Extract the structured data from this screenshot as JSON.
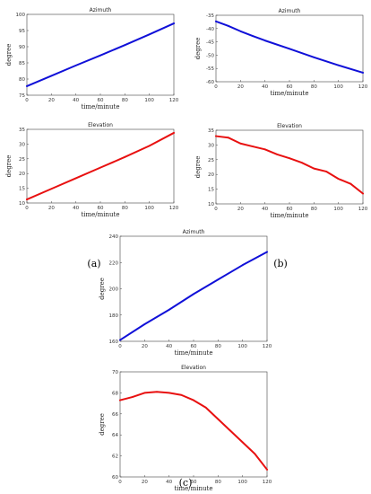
{
  "figure": {
    "sublabels": [
      "(a)",
      "(b)",
      "(c)"
    ]
  },
  "chart_data": [
    {
      "type": "line",
      "panel": "(a)",
      "title": "Azimuth",
      "xlabel": "time/minute",
      "ylabel": "degree",
      "xlim": [
        0,
        120
      ],
      "ylim": [
        75,
        100
      ],
      "xticks": [
        0,
        20,
        40,
        60,
        80,
        100,
        120
      ],
      "yticks": [
        75,
        80,
        85,
        90,
        95,
        100
      ],
      "grid": false,
      "color": "#1010d8",
      "x": [
        0,
        20,
        40,
        60,
        80,
        100,
        120
      ],
      "y": [
        77.8,
        81.0,
        84.2,
        87.3,
        90.5,
        93.8,
        97.2
      ]
    },
    {
      "type": "line",
      "panel": "(a)",
      "title": "Elevation",
      "xlabel": "time/minute",
      "ylabel": "degree",
      "xlim": [
        0,
        120
      ],
      "ylim": [
        10,
        35
      ],
      "xticks": [
        0,
        20,
        40,
        60,
        80,
        100,
        120
      ],
      "yticks": [
        10,
        15,
        20,
        25,
        30,
        35
      ],
      "grid": false,
      "color": "#e81010",
      "x": [
        0,
        20,
        40,
        60,
        80,
        100,
        120
      ],
      "y": [
        11.2,
        14.8,
        18.4,
        22.0,
        25.6,
        29.4,
        33.8
      ]
    },
    {
      "type": "line",
      "panel": "(b)",
      "title": "Azimuth",
      "xlabel": "time/minute",
      "ylabel": "degree",
      "xlim": [
        0,
        120
      ],
      "ylim": [
        -60,
        -35
      ],
      "xticks": [
        0,
        20,
        40,
        60,
        80,
        100,
        120
      ],
      "yticks": [
        -60,
        -55,
        -50,
        -45,
        -40,
        -35
      ],
      "grid": false,
      "color": "#1010d8",
      "x": [
        0,
        10,
        20,
        30,
        40,
        60,
        80,
        100,
        120
      ],
      "y": [
        -37.3,
        -39.0,
        -41.0,
        -42.8,
        -44.5,
        -47.6,
        -50.8,
        -53.8,
        -56.6
      ]
    },
    {
      "type": "line",
      "panel": "(b)",
      "title": "Elevation",
      "xlabel": "time/minute",
      "ylabel": "degree",
      "xlim": [
        0,
        120
      ],
      "ylim": [
        10,
        35
      ],
      "xticks": [
        0,
        20,
        40,
        60,
        80,
        100,
        120
      ],
      "yticks": [
        10,
        15,
        20,
        25,
        30,
        35
      ],
      "grid": false,
      "color": "#e81010",
      "x": [
        0,
        10,
        20,
        30,
        40,
        50,
        60,
        70,
        80,
        90,
        100,
        110,
        120
      ],
      "y": [
        33.0,
        32.5,
        30.5,
        29.5,
        28.5,
        26.8,
        25.5,
        24.0,
        22.0,
        21.0,
        18.5,
        16.8,
        13.5
      ]
    },
    {
      "type": "line",
      "panel": "(c)",
      "title": "Azimuth",
      "xlabel": "time/minute",
      "ylabel": "degree",
      "xlim": [
        0,
        120
      ],
      "ylim": [
        160,
        240
      ],
      "xticks": [
        0,
        20,
        40,
        60,
        80,
        100,
        120
      ],
      "yticks": [
        160,
        180,
        200,
        220,
        240
      ],
      "grid": false,
      "color": "#1010d8",
      "x": [
        0,
        20,
        40,
        60,
        80,
        100,
        120
      ],
      "y": [
        161,
        173,
        184,
        196,
        207,
        218,
        228
      ]
    },
    {
      "type": "line",
      "panel": "(c)",
      "title": "Elevation",
      "xlabel": "time/minute",
      "ylabel": "degree",
      "xlim": [
        0,
        120
      ],
      "ylim": [
        60,
        70
      ],
      "xticks": [
        0,
        20,
        40,
        60,
        80,
        100,
        120
      ],
      "yticks": [
        60,
        62,
        64,
        66,
        68,
        70
      ],
      "grid": false,
      "color": "#e81010",
      "x": [
        0,
        10,
        20,
        30,
        40,
        50,
        60,
        70,
        80,
        90,
        100,
        110,
        120
      ],
      "y": [
        67.3,
        67.6,
        68.0,
        68.1,
        68.0,
        67.8,
        67.3,
        66.6,
        65.5,
        64.4,
        63.3,
        62.2,
        60.7
      ]
    }
  ]
}
